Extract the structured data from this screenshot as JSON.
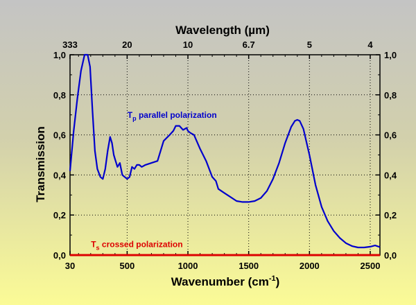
{
  "chart_data": {
    "type": "line",
    "xlabel": "Wavenumber (cm",
    "xlabel_sup": "-1",
    "xlabel_suffix": ")",
    "ylabel": "Transmission",
    "top_xlabel": "Wavelength (µm)",
    "xlim": [
      30,
      2580
    ],
    "ylim": [
      0,
      1
    ],
    "x_ticks": [
      30,
      500,
      1000,
      1500,
      2000,
      2500
    ],
    "x_tick_labels": [
      "30",
      "500",
      "1000",
      "1500",
      "2000",
      "2500"
    ],
    "y_ticks": [
      0,
      0.2,
      0.4,
      0.6,
      0.8,
      1.0
    ],
    "y_tick_labels": [
      "0,0",
      "0,2",
      "0,4",
      "0,6",
      "0,8",
      "1,0"
    ],
    "top_ticks": [
      30,
      500,
      1000,
      1500,
      2000,
      2500
    ],
    "top_tick_labels": [
      "333",
      "20",
      "10",
      "6.7",
      "5",
      "4"
    ],
    "grid": true,
    "colors": {
      "parallel": "#0000cc",
      "crossed": "#dd0000",
      "axis": "#000000",
      "grid": "#000000"
    },
    "annotations": [
      {
        "main": "T",
        "sub": "p",
        "rest": " parallel polarization",
        "color": "#0000cc",
        "x": 870,
        "y": 0.685
      },
      {
        "main": "T",
        "sub": "s",
        "rest": " crossed polarization",
        "color": "#dd0000",
        "x": 580,
        "y": 0.04
      }
    ],
    "series": [
      {
        "id": "parallel",
        "x": [
          30,
          60,
          90,
          120,
          150,
          175,
          195,
          215,
          235,
          255,
          280,
          300,
          320,
          340,
          360,
          375,
          390,
          405,
          420,
          440,
          460,
          480,
          500,
          520,
          540,
          560,
          580,
          600,
          620,
          650,
          700,
          750,
          800,
          850,
          880,
          900,
          930,
          960,
          990,
          1000,
          1020,
          1050,
          1100,
          1150,
          1200,
          1230,
          1250,
          1300,
          1350,
          1400,
          1450,
          1500,
          1550,
          1600,
          1650,
          1700,
          1750,
          1800,
          1850,
          1880,
          1900,
          1920,
          1950,
          2000,
          2050,
          2100,
          2150,
          2200,
          2250,
          2300,
          2350,
          2400,
          2450,
          2500,
          2540,
          2580
        ],
        "y": [
          0.42,
          0.62,
          0.78,
          0.92,
          1.0,
          1.0,
          0.94,
          0.72,
          0.52,
          0.43,
          0.39,
          0.38,
          0.43,
          0.52,
          0.59,
          0.56,
          0.5,
          0.47,
          0.44,
          0.46,
          0.4,
          0.39,
          0.38,
          0.39,
          0.44,
          0.43,
          0.45,
          0.45,
          0.44,
          0.45,
          0.46,
          0.47,
          0.57,
          0.6,
          0.62,
          0.645,
          0.645,
          0.625,
          0.635,
          0.62,
          0.61,
          0.6,
          0.53,
          0.47,
          0.39,
          0.37,
          0.33,
          0.31,
          0.29,
          0.27,
          0.265,
          0.265,
          0.27,
          0.285,
          0.32,
          0.38,
          0.46,
          0.56,
          0.64,
          0.67,
          0.675,
          0.67,
          0.63,
          0.5,
          0.35,
          0.24,
          0.17,
          0.12,
          0.085,
          0.06,
          0.045,
          0.038,
          0.038,
          0.042,
          0.048,
          0.04
        ]
      },
      {
        "id": "crossed",
        "x": [
          30,
          2580
        ],
        "y": [
          0.0,
          0.0
        ]
      }
    ]
  }
}
